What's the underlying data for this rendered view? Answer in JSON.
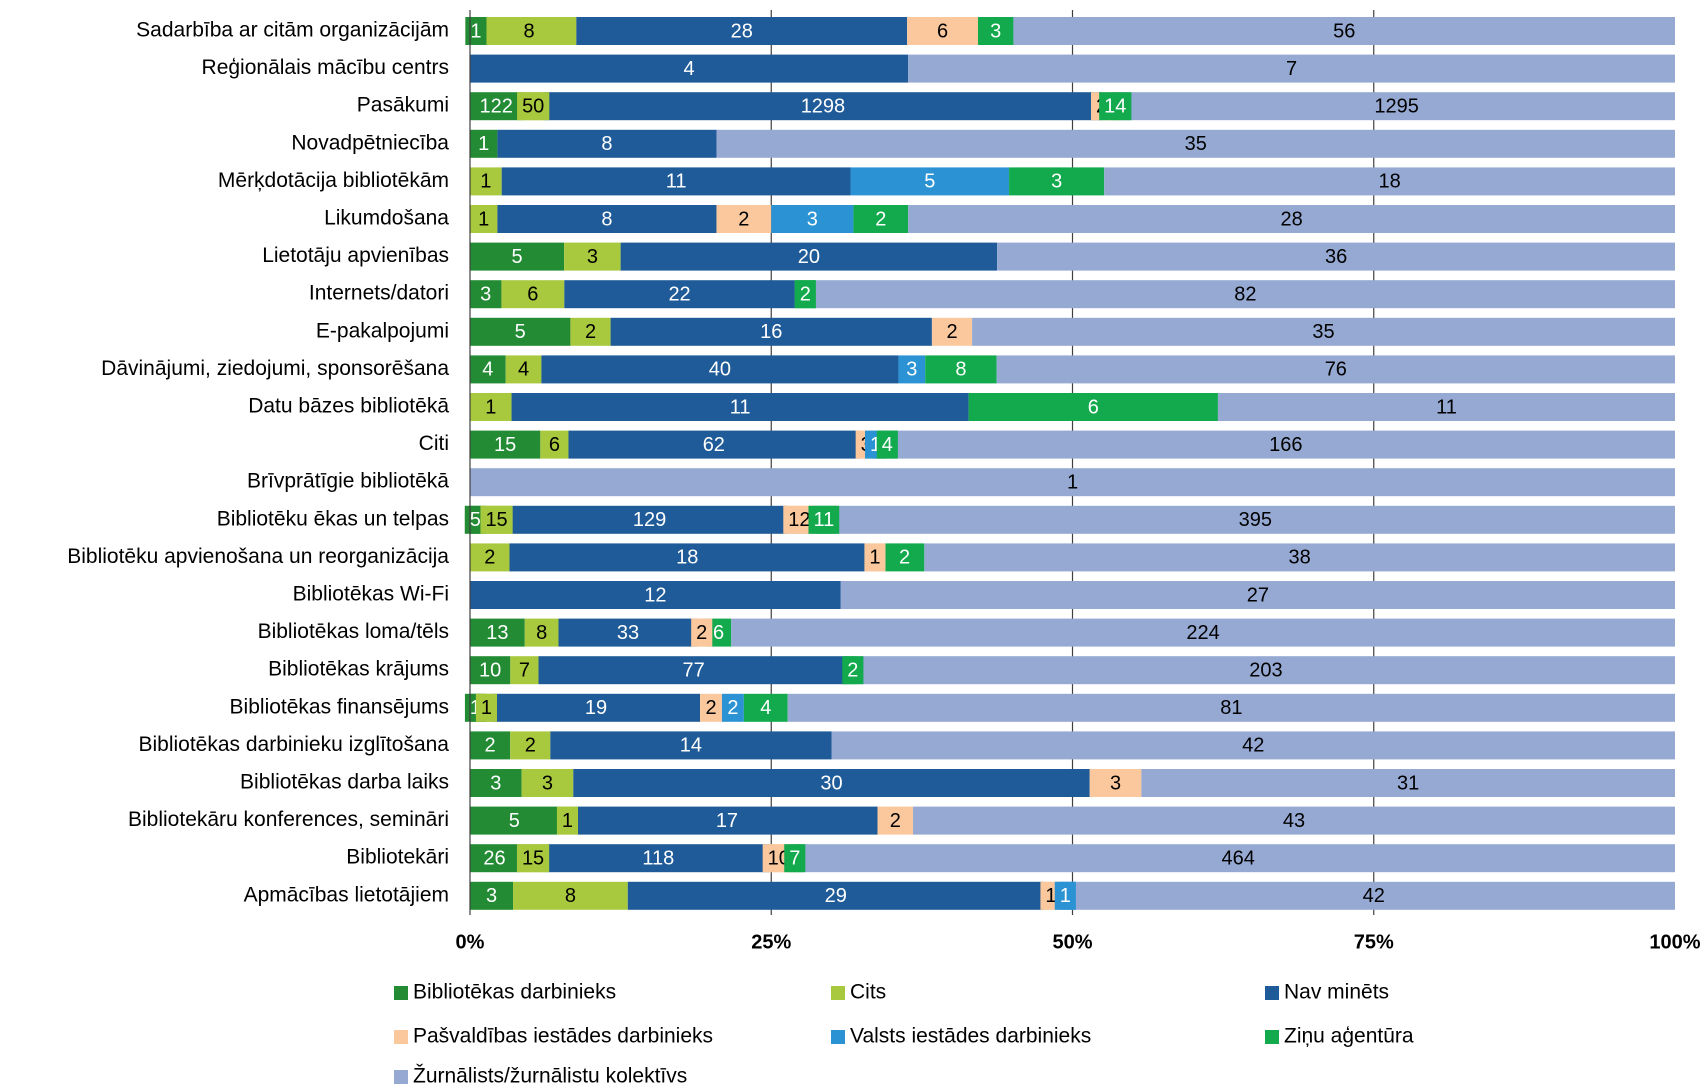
{
  "chart_data": {
    "type": "bar",
    "orientation": "horizontal",
    "stacking": "percent",
    "categories": [
      "Sadarbība ar citām organizācijām",
      "Reģionālais mācību centrs",
      "Pasākumi",
      "Novadpētniecība",
      "Mērķdotācija bibliotēkām",
      "Likumdošana",
      "Lietotāju apvienības",
      "Internets/datori",
      "E-pakalpojumi",
      "Dāvinājumi, ziedojumi, sponsorēšana",
      "Datu bāzes bibliotēkā",
      "Citi",
      "Brīvprātīgie bibliotēkā",
      "Bibliotēku ēkas un telpas",
      "Bibliotēku apvienošana un reorganizācija",
      "Bibliotēkas Wi-Fi",
      "Bibliotēkas loma/tēls",
      "Bibliotēkas krājums",
      "Bibliotēkas finansējums",
      "Bibliotēkas darbinieku izglītošana",
      "Bibliotēkas darba laiks",
      "Bibliotekāru konferences, semināri",
      "Bibliotekāri",
      "Apmācības lietotājiem"
    ],
    "series": [
      {
        "name": "Bibliotēkas darbinieks",
        "color": "#228b34",
        "label_color": "#ffffff",
        "values": [
          1,
          0,
          122,
          1,
          0,
          0,
          5,
          3,
          5,
          4,
          0,
          15,
          0,
          5,
          0,
          0,
          13,
          10,
          1,
          2,
          3,
          5,
          26,
          3
        ]
      },
      {
        "name": "Cits",
        "color": "#a8c83e",
        "label_color": "#000000",
        "values": [
          8,
          0,
          50,
          0,
          1,
          1,
          3,
          6,
          2,
          4,
          1,
          6,
          0,
          15,
          2,
          0,
          8,
          7,
          1,
          2,
          3,
          1,
          15,
          8
        ]
      },
      {
        "name": "Nav minēts",
        "color": "#1f5b98",
        "label_color": "#ffffff",
        "values": [
          28,
          4,
          1298,
          8,
          11,
          8,
          20,
          22,
          16,
          40,
          11,
          62,
          0,
          129,
          18,
          12,
          33,
          77,
          19,
          14,
          30,
          17,
          118,
          29
        ]
      },
      {
        "name": "Pašvaldības iestādes darbinieks",
        "color": "#fac89c",
        "label_color": "#000000",
        "values": [
          6,
          0,
          24,
          0,
          0,
          2,
          0,
          0,
          2,
          0,
          0,
          3,
          0,
          12,
          1,
          0,
          2,
          0,
          2,
          0,
          3,
          2,
          10,
          1
        ]
      },
      {
        "name": "Valsts iestādes darbinieks",
        "color": "#2b93d3",
        "label_color": "#ffffff",
        "values": [
          0,
          0,
          0,
          0,
          5,
          3,
          0,
          0,
          0,
          3,
          0,
          1,
          0,
          0,
          0,
          0,
          0,
          0,
          2,
          0,
          0,
          0,
          0,
          1
        ]
      },
      {
        "name": "Ziņu aģentūra",
        "color": "#12aa4d",
        "label_color": "#ffffff",
        "values": [
          3,
          0,
          14,
          0,
          3,
          2,
          0,
          2,
          0,
          8,
          6,
          4,
          0,
          11,
          2,
          0,
          6,
          2,
          4,
          0,
          0,
          0,
          7,
          0
        ]
      },
      {
        "name": "Žurnālists/žurnālistu kolektīvs",
        "color": "#95a9d3",
        "label_color": "#000000",
        "values": [
          56,
          7,
          1295,
          35,
          18,
          28,
          36,
          82,
          35,
          76,
          11,
          166,
          1,
          395,
          38,
          27,
          224,
          203,
          81,
          42,
          31,
          43,
          464,
          42
        ]
      }
    ],
    "xticks": [
      "0%",
      "25%",
      "50%",
      "75%",
      "100%"
    ],
    "xlim": [
      0,
      100
    ],
    "grid": "vertical major gridlines",
    "legend": "bottom"
  }
}
